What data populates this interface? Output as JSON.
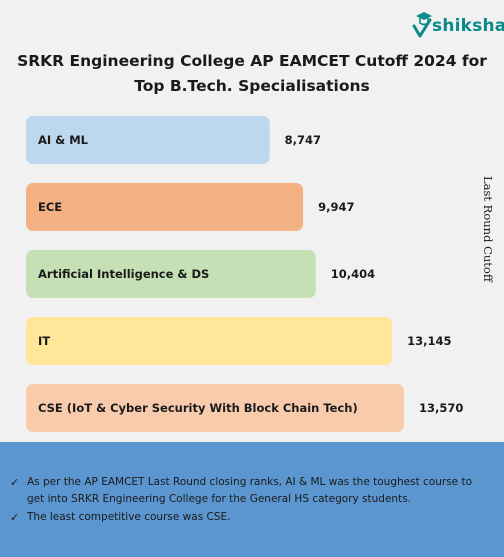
{
  "brand": {
    "name": "shiksha"
  },
  "chart_data": {
    "type": "bar",
    "orientation": "horizontal",
    "title": "SRKR Engineering College AP EAMCET Cutoff 2024 for Top B.Tech. Specialisations",
    "ylabel": "Last Round Cutoff",
    "categories": [
      "AI & ML",
      "ECE",
      "Artificial Intelligence & DS",
      "IT",
      "CSE (IoT & Cyber Security With Block Chain Tech)"
    ],
    "values": [
      8747,
      9947,
      10404,
      13145,
      13570
    ],
    "value_labels": [
      "8,747",
      "9,947",
      "10,404",
      "13,145",
      "13,570"
    ],
    "colors": [
      "#bdd7ee",
      "#f4b183",
      "#c5e0b4",
      "#ffe699",
      "#f8cbad"
    ],
    "legend": "none",
    "grid": false
  },
  "notes": [
    "As per the AP EAMCET Last Round closing ranks, AI & ML was the toughest course to get into SRKR Engineering College for the General HS category students.",
    "The least competitive course was CSE."
  ]
}
